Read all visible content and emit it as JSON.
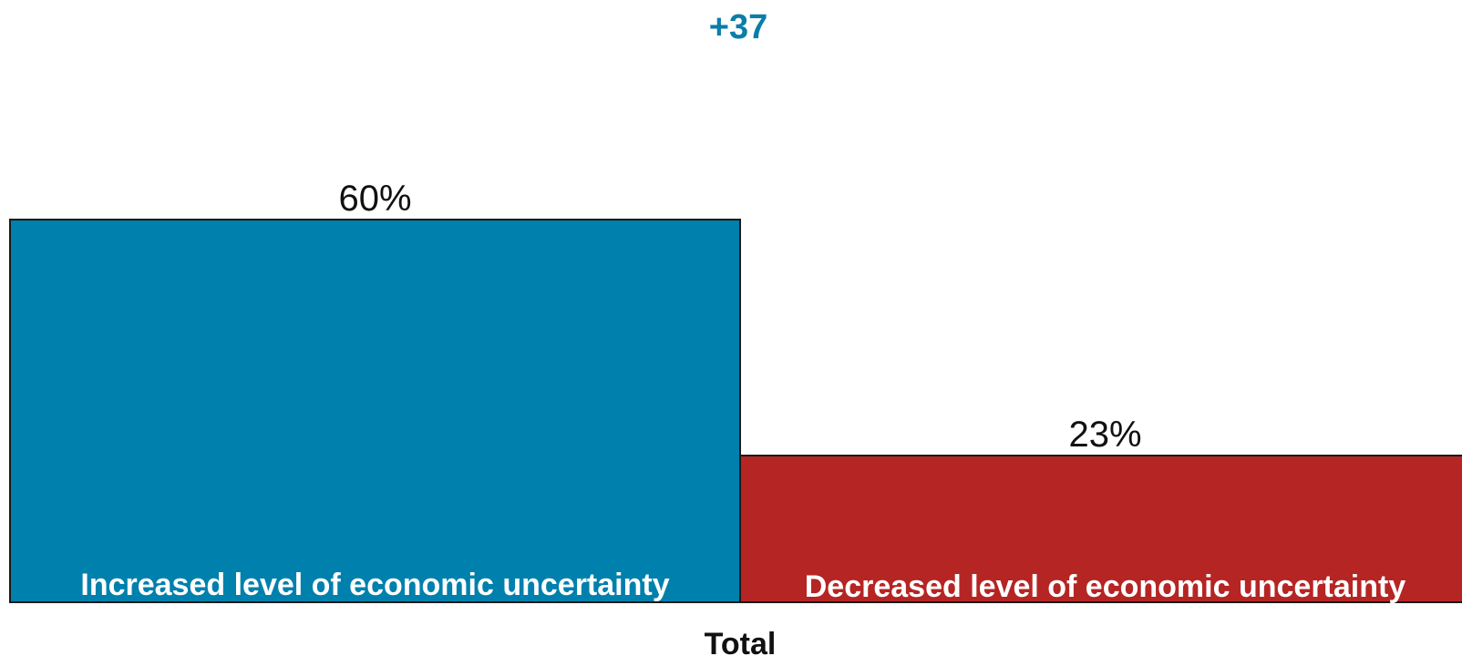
{
  "chart_data": {
    "type": "bar",
    "category": "Total",
    "net_label": "+37",
    "ylim": [
      0,
      100
    ],
    "grid": false,
    "series": [
      {
        "label": "Increased level of economic uncertainty",
        "value": 60,
        "value_label": "60%",
        "color": "#0080ac"
      },
      {
        "label": "Decreased level of economic uncertainty",
        "value": 23,
        "value_label": "23%",
        "color": "#b52524"
      }
    ]
  },
  "colors": {
    "net_text": "#0a7ea8",
    "outline": "#1a1a1a"
  }
}
